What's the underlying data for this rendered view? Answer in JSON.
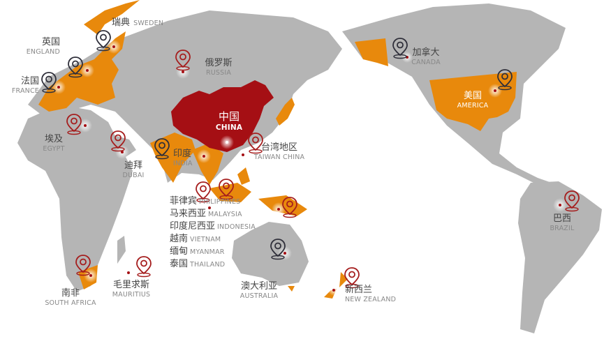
{
  "colors": {
    "land": "#b5b5b5",
    "highlight": "#e8890c",
    "china": "#a50f14",
    "pin_dark": "#2f2f3a",
    "pin_red": "#a51d1d",
    "dot": "#a50f14"
  },
  "locations": {
    "sweden": {
      "zh": "瑞典",
      "en": "SWEDEN",
      "pin": "dark"
    },
    "england": {
      "zh": "英国",
      "en": "ENGLAND",
      "pin": "dark"
    },
    "france": {
      "zh": "法国",
      "en": "FRANCE",
      "pin": "dark"
    },
    "russia": {
      "zh": "俄罗斯",
      "en": "RUSSIA",
      "pin": "red"
    },
    "china": {
      "zh": "中国",
      "en": "CHINA"
    },
    "egypt": {
      "zh": "埃及",
      "en": "EGYPT",
      "pin": "red"
    },
    "dubai": {
      "zh": "迪拜",
      "en": "DUBAI",
      "pin": "red"
    },
    "india": {
      "zh": "印度",
      "en": "INDIA",
      "pin": "dark"
    },
    "taiwan": {
      "zh": "台湾地区",
      "en": "TAIWAN CHINA",
      "pin": "red"
    },
    "canada": {
      "zh": "加拿大",
      "en": "CANADA",
      "pin": "dark"
    },
    "america": {
      "zh": "美国",
      "en": "AMERICA",
      "pin": "dark"
    },
    "brazil": {
      "zh": "巴西",
      "en": "BRAZIL",
      "pin": "red"
    },
    "south_africa": {
      "zh": "南非",
      "en": "SOUTH AFRICA",
      "pin": "red"
    },
    "mauritius": {
      "zh": "毛里求斯",
      "en": "MAURITIUS",
      "pin": "red"
    },
    "australia": {
      "zh": "澳大利亚",
      "en": "AUSTRALIA",
      "pin": "dark"
    },
    "new_zealand": {
      "zh": "新西兰",
      "en": "NEW ZEALAND",
      "pin": "red"
    }
  },
  "southeast_asia": [
    {
      "zh": "菲律宾",
      "en": "PHILIPPINES"
    },
    {
      "zh": "马来西亚",
      "en": "MALAYSIA"
    },
    {
      "zh": "印度尼西亚",
      "en": "INDONESIA"
    },
    {
      "zh": "越南",
      "en": "VIETNAM"
    },
    {
      "zh": "缅甸",
      "en": "MYANMAR"
    },
    {
      "zh": "泰国",
      "en": "THAILAND"
    }
  ]
}
